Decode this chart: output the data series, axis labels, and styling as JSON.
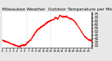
{
  "title": "Milwaukee Weather  Outdoor Temperature per Minute (Last 24 Hours)",
  "background_color": "#e8e8e8",
  "plot_bg_color": "#ffffff",
  "line_color": "#ff0000",
  "ylim": [
    27,
    78
  ],
  "yticks": [
    30,
    35,
    40,
    45,
    50,
    55,
    60,
    65,
    70,
    75
  ],
  "ytick_labels": [
    "30",
    "35",
    "40",
    "45",
    "50",
    "55",
    "60",
    "65",
    "70",
    "75"
  ],
  "vline_positions": [
    0.27,
    0.54
  ],
  "vline_color": "#aaaaaa",
  "num_points": 1440,
  "title_fontsize": 4.5,
  "tick_fontsize": 3.5,
  "line_width": 0.5,
  "marker_size": 0.7,
  "temperature_profile": [
    38,
    37,
    37,
    36,
    36,
    35,
    35,
    34,
    34,
    33,
    33,
    32,
    32,
    31,
    31,
    30,
    30,
    29,
    29,
    29,
    29,
    29,
    30,
    30,
    31,
    32,
    33,
    34,
    35,
    36,
    37,
    38,
    40,
    42,
    44,
    46,
    48,
    50,
    52,
    53,
    54,
    55,
    56,
    57,
    58,
    59,
    60,
    61,
    62,
    63,
    64,
    65,
    65,
    66,
    67,
    67,
    68,
    68,
    69,
    69,
    70,
    70,
    71,
    72,
    72,
    73,
    73,
    72,
    72,
    71,
    72,
    72,
    71,
    70,
    70,
    69,
    69,
    68,
    67,
    66,
    65,
    63,
    61,
    59,
    57,
    55,
    53,
    51,
    49,
    47,
    45,
    43,
    42,
    41,
    40,
    39,
    38,
    38,
    37,
    37
  ]
}
